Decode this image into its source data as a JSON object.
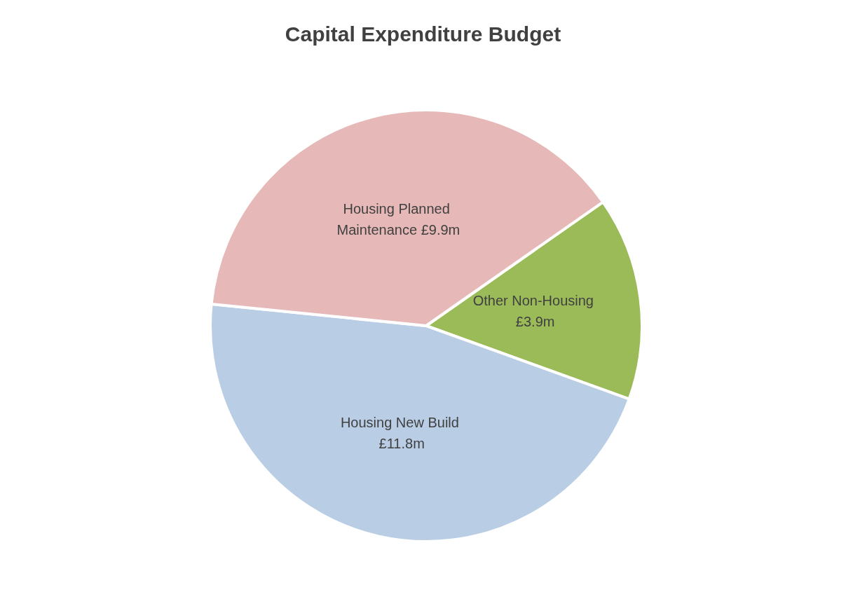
{
  "chart_data": {
    "type": "pie",
    "title": "Capital Expenditure Budget",
    "categories": [
      "Other Non-Housing",
      "Housing New Build",
      "Housing Planned Maintenance"
    ],
    "values": [
      3.9,
      11.8,
      9.9
    ],
    "value_labels": [
      "£3.9m",
      "£11.8m",
      "£9.9m"
    ],
    "colors": [
      "#9bbb59",
      "#b9cde5",
      "#e6b8b7"
    ],
    "legend": false
  }
}
